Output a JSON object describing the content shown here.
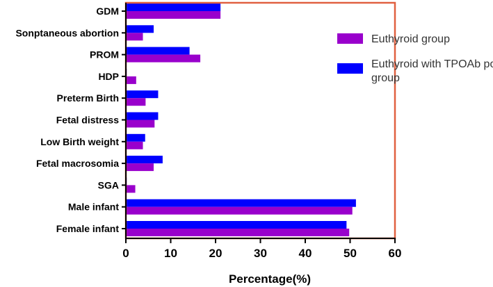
{
  "chart_data": {
    "type": "bar",
    "orientation": "horizontal",
    "categories": [
      "GDM",
      "Sonptaneous abortion",
      "PROM",
      "HDP",
      "Preterm Birth",
      "Fetal distress",
      "Low Birth weight",
      "Fetal macrosomia",
      "SGA",
      "Male infant",
      "Female infant"
    ],
    "series": [
      {
        "name": "Euthyroid with TPOAb positivity group",
        "color": "#0000ff",
        "values": [
          21.1,
          6.2,
          14.2,
          0.2,
          7.2,
          7.2,
          4.3,
          8.2,
          0.2,
          51.3,
          49.2
        ]
      },
      {
        "name": "Euthyroid group",
        "color": "#9900cc",
        "values": [
          21.1,
          3.8,
          16.6,
          2.3,
          4.4,
          6.4,
          3.8,
          6.2,
          2.1,
          50.5,
          49.8
        ]
      }
    ],
    "legend_order": [
      "Euthyroid group",
      "Euthyroid with TPOAb positivity group"
    ],
    "xlabel": "Percentage(%)",
    "ylabel": "",
    "xlim": [
      0,
      60
    ],
    "xticks": [
      "0",
      "10",
      "20",
      "30",
      "40",
      "50",
      "60"
    ],
    "grid": false,
    "legend_position": "top-right",
    "frame_color": "#e06040"
  }
}
